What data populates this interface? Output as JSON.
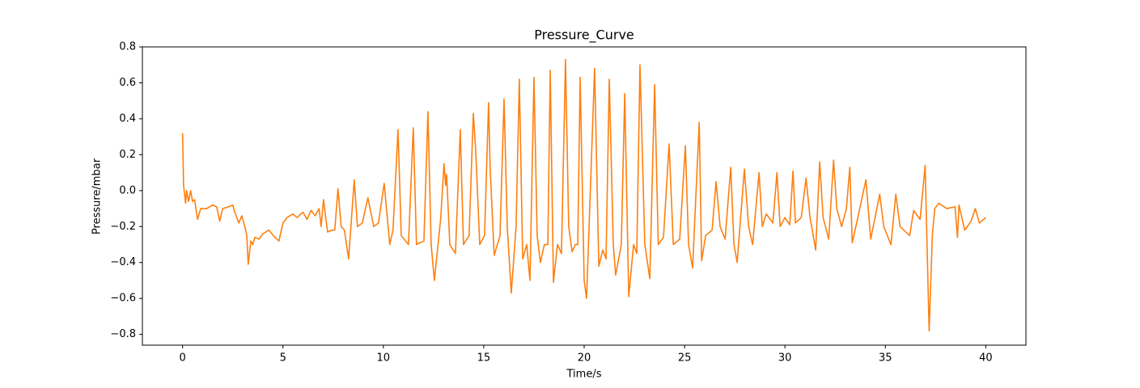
{
  "chart_data": {
    "type": "line",
    "title": "Pressure_Curve",
    "xlabel": "Time/s",
    "ylabel": "Pressure/mbar",
    "xlim": [
      -2,
      42
    ],
    "ylim": [
      -0.86,
      0.8
    ],
    "xticks": [
      0,
      5,
      10,
      15,
      20,
      25,
      30,
      35,
      40
    ],
    "yticks": [
      {
        "value": -0.8,
        "label": "−0.8"
      },
      {
        "value": -0.6,
        "label": "−0.6"
      },
      {
        "value": -0.4,
        "label": "−0.4"
      },
      {
        "value": -0.2,
        "label": "−0.2"
      },
      {
        "value": 0,
        "label": "0.0"
      },
      0.2,
      0.4,
      0.6,
      0.8
    ],
    "series": [
      {
        "color": "#ff7f0e",
        "x": [
          0,
          0.05,
          0.15,
          0.2,
          0.3,
          0.4,
          0.5,
          0.6,
          0.75,
          0.9,
          1.2,
          1.5,
          1.7,
          1.85,
          2.0,
          2.3,
          2.5,
          2.6,
          2.8,
          2.95,
          3.1,
          3.2,
          3.27,
          3.4,
          3.5,
          3.6,
          3.8,
          4.0,
          4.3,
          4.6,
          4.8,
          5.0,
          5.2,
          5.5,
          5.7,
          6.0,
          6.2,
          6.4,
          6.6,
          6.8,
          6.9,
          7.02,
          7.22,
          7.42,
          7.58,
          7.74,
          7.9,
          8.06,
          8.27,
          8.55,
          8.71,
          8.95,
          9.23,
          9.52,
          9.76,
          10.04,
          10.32,
          10.48,
          10.73,
          10.89,
          11.25,
          11.49,
          11.65,
          12.02,
          12.22,
          12.38,
          12.54,
          12.86,
          13.02,
          13.1,
          13.15,
          13.31,
          13.59,
          13.83,
          13.99,
          14.27,
          14.48,
          14.6,
          14.8,
          15.04,
          15.24,
          15.32,
          15.52,
          15.81,
          16.01,
          16.17,
          16.37,
          16.61,
          16.77,
          16.94,
          17.14,
          17.3,
          17.5,
          17.66,
          17.82,
          18.02,
          18.19,
          18.31,
          18.47,
          18.67,
          18.87,
          19.07,
          19.23,
          19.4,
          19.56,
          19.68,
          19.8,
          20.0,
          20.12,
          20.52,
          20.73,
          20.93,
          21.09,
          21.25,
          21.45,
          21.57,
          21.85,
          22.02,
          22.22,
          22.46,
          22.62,
          22.78,
          23.02,
          23.27,
          23.51,
          23.69,
          23.95,
          24.23,
          24.44,
          24.76,
          25.04,
          25.2,
          25.4,
          25.73,
          25.85,
          26.05,
          26.37,
          26.57,
          26.77,
          27.02,
          27.3,
          27.46,
          27.62,
          27.98,
          28.19,
          28.39,
          28.71,
          28.87,
          29.07,
          29.4,
          29.6,
          29.76,
          30.0,
          30.24,
          30.4,
          30.52,
          30.81,
          31.05,
          31.25,
          31.53,
          31.73,
          31.9,
          32.18,
          32.42,
          32.58,
          32.82,
          33.06,
          33.23,
          33.35,
          33.63,
          34.03,
          34.27,
          34.72,
          34.92,
          35.28,
          35.52,
          35.73,
          36.21,
          36.41,
          36.73,
          36.98,
          37.18,
          37.34,
          37.46,
          37.66,
          38.06,
          38.47,
          38.59,
          38.67,
          38.95,
          39.27,
          39.48,
          39.68,
          40.0
        ],
        "values": [
          0.32,
          0.03,
          -0.07,
          0.0,
          -0.06,
          0.0,
          -0.06,
          -0.05,
          -0.16,
          -0.1,
          -0.1,
          -0.08,
          -0.09,
          -0.17,
          -0.1,
          -0.09,
          -0.08,
          -0.12,
          -0.18,
          -0.14,
          -0.2,
          -0.25,
          -0.41,
          -0.28,
          -0.3,
          -0.26,
          -0.27,
          -0.24,
          -0.22,
          -0.26,
          -0.28,
          -0.18,
          -0.15,
          -0.13,
          -0.15,
          -0.12,
          -0.16,
          -0.11,
          -0.14,
          -0.1,
          -0.2,
          -0.05,
          -0.23,
          -0.22,
          -0.22,
          0.01,
          -0.2,
          -0.22,
          -0.38,
          0.06,
          -0.2,
          -0.18,
          -0.04,
          -0.2,
          -0.18,
          0.04,
          -0.3,
          -0.22,
          0.34,
          -0.25,
          -0.3,
          0.35,
          -0.3,
          -0.28,
          0.44,
          -0.3,
          -0.5,
          -0.15,
          0.15,
          0.03,
          0.09,
          -0.3,
          -0.35,
          0.34,
          -0.3,
          -0.25,
          0.43,
          0.22,
          -0.3,
          -0.25,
          0.49,
          0.12,
          -0.36,
          -0.25,
          0.51,
          -0.2,
          -0.57,
          -0.2,
          0.62,
          -0.38,
          -0.3,
          -0.5,
          0.63,
          -0.25,
          -0.4,
          -0.3,
          -0.3,
          0.67,
          -0.51,
          -0.3,
          -0.35,
          0.73,
          -0.2,
          -0.34,
          -0.3,
          -0.3,
          0.63,
          -0.5,
          -0.6,
          0.68,
          -0.42,
          -0.33,
          -0.38,
          0.62,
          -0.3,
          -0.47,
          -0.3,
          0.54,
          -0.59,
          -0.3,
          -0.35,
          0.7,
          -0.3,
          -0.49,
          0.59,
          -0.3,
          -0.26,
          0.26,
          -0.3,
          -0.27,
          0.25,
          -0.3,
          -0.43,
          0.38,
          -0.39,
          -0.25,
          -0.22,
          0.05,
          -0.2,
          -0.27,
          0.13,
          -0.3,
          -0.4,
          0.12,
          -0.2,
          -0.3,
          0.1,
          -0.2,
          -0.13,
          -0.18,
          0.1,
          -0.2,
          -0.15,
          -0.19,
          0.11,
          -0.18,
          -0.15,
          0.07,
          -0.15,
          -0.33,
          0.16,
          -0.15,
          -0.27,
          0.17,
          -0.1,
          -0.2,
          -0.1,
          0.13,
          -0.29,
          -0.15,
          0.06,
          -0.27,
          -0.02,
          -0.2,
          -0.3,
          -0.02,
          -0.2,
          -0.25,
          -0.11,
          -0.16,
          0.14,
          -0.78,
          -0.25,
          -0.1,
          -0.07,
          -0.1,
          -0.09,
          -0.26,
          -0.08,
          -0.22,
          -0.17,
          -0.1,
          -0.18,
          -0.15
        ]
      }
    ]
  }
}
